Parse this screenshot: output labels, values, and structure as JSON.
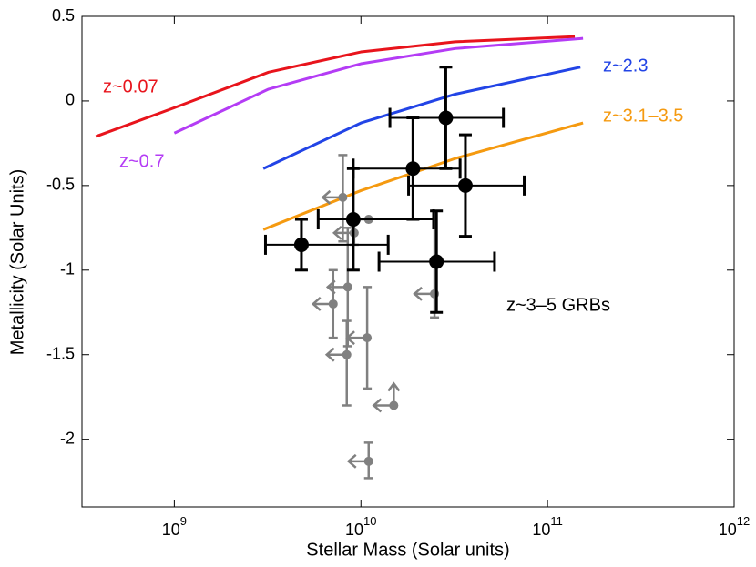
{
  "chart_data": {
    "type": "scatter",
    "xlabel": "Stellar Mass (Solar units)",
    "ylabel": "Metallicity (Solar Units)",
    "xscale": "log",
    "xlim": [
      320000000,
      1000000000000
    ],
    "ylim": [
      -2.4,
      0.5
    ],
    "xticks": [
      {
        "value": 1000000000,
        "label": "10^9"
      },
      {
        "value": 10000000000,
        "label": "10^10"
      },
      {
        "value": 100000000000,
        "label": "10^11"
      },
      {
        "value": 1000000000000,
        "label": "10^12"
      }
    ],
    "yticks": [
      0.5,
      0,
      -0.5,
      -1,
      -1.5,
      -2
    ],
    "series": [
      {
        "name": "z~0.07",
        "type": "line",
        "color": "#e8141c",
        "x": [
          380000000,
          1000000000,
          3200000000,
          10000000000,
          32000000000,
          140000000000
        ],
        "y": [
          -0.21,
          -0.04,
          0.17,
          0.29,
          0.35,
          0.38
        ]
      },
      {
        "name": "z~0.7",
        "type": "line",
        "color": "#b43cf5",
        "x": [
          1000000000,
          3200000000,
          10000000000,
          32000000000,
          155000000000
        ],
        "y": [
          -0.19,
          0.07,
          0.22,
          0.31,
          0.37
        ]
      },
      {
        "name": "z~2.3",
        "type": "line",
        "color": "#2244e6",
        "x": [
          3000000000,
          10000000000,
          32000000000,
          150000000000
        ],
        "y": [
          -0.4,
          -0.13,
          0.04,
          0.2
        ]
      },
      {
        "name": "z~3.1–3.5",
        "type": "line",
        "color": "#f59a10",
        "x": [
          3000000000,
          10000000000,
          32000000000,
          155000000000
        ],
        "y": [
          -0.76,
          -0.53,
          -0.34,
          -0.13
        ]
      },
      {
        "type": "errorbar",
        "color": "#808080",
        "x": [
          8000000000,
          9200000000,
          11000000000,
          8500000000,
          7100000000,
          8400000000,
          10800000000,
          24800000000,
          15000000000,
          11000000000
        ],
        "y": [
          -0.57,
          -0.78,
          -0.7,
          -1.1,
          -1.2,
          -1.5,
          -1.4,
          -1.14,
          -1.8,
          -2.13
        ],
        "y_high": [
          -0.32,
          -0.7,
          null,
          -0.75,
          -1.0,
          -1.3,
          -1.1,
          -0.65,
          null,
          -2.02
        ],
        "y_low": [
          -0.83,
          -0.85,
          null,
          -1.45,
          -1.4,
          -1.8,
          -1.7,
          -1.28,
          null,
          -2.23
        ],
        "x_upper_limit": [
          true,
          true,
          true,
          true,
          true,
          true,
          true,
          true,
          true,
          true
        ],
        "y_lower_limit": [
          false,
          false,
          false,
          false,
          false,
          false,
          false,
          false,
          true,
          false
        ]
      },
      {
        "name": "z~3–5 GRBs",
        "type": "errorbar",
        "color": "#000000",
        "x": [
          4800000000,
          9100000000,
          19000000000,
          28500000000,
          36300000000,
          25400000000
        ],
        "y": [
          -0.85,
          -0.7,
          -0.4,
          -0.1,
          -0.5,
          -0.95
        ],
        "x_low": [
          3080000000,
          5900000000,
          9100000000,
          14300000000,
          18000000000,
          12500000000
        ],
        "x_high": [
          14000000000,
          24500000000,
          34000000000,
          58000000000,
          75000000000,
          52000000000
        ],
        "y_high": [
          -0.7,
          -0.4,
          -0.1,
          0.2,
          -0.2,
          -0.65
        ],
        "y_low": [
          -1.0,
          -1.0,
          -0.7,
          -0.4,
          -0.8,
          -1.25
        ]
      }
    ]
  }
}
